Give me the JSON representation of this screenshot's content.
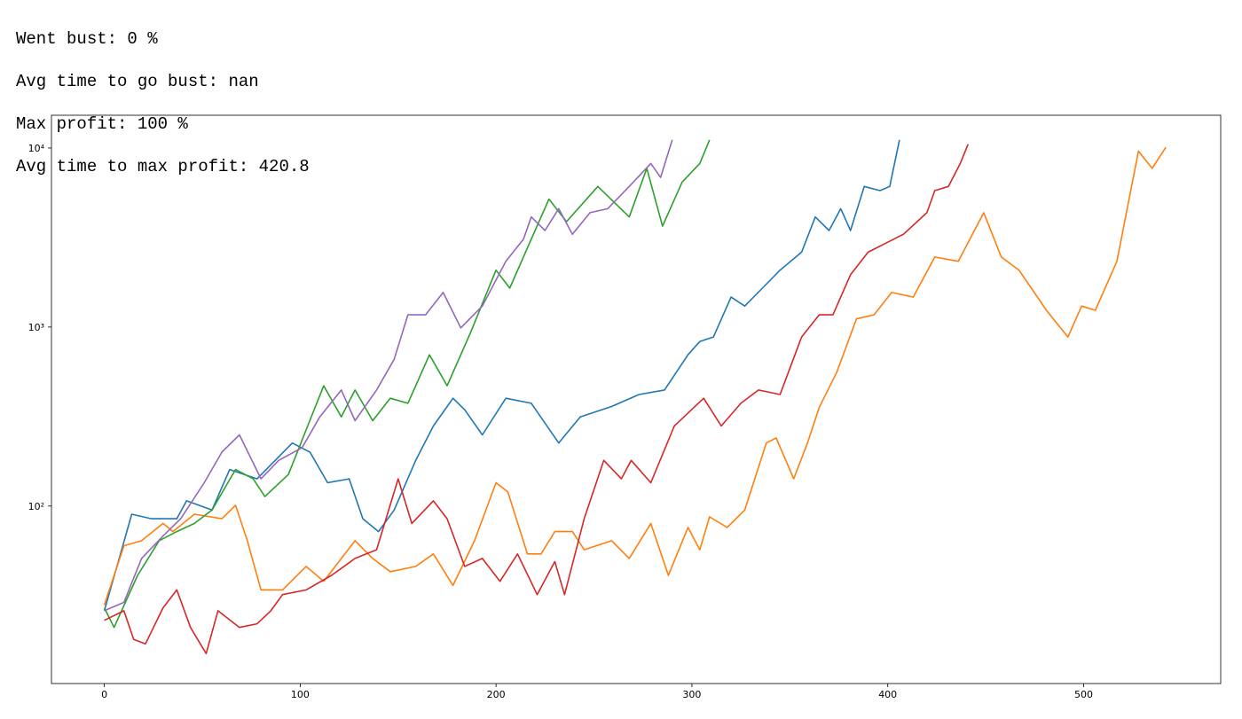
{
  "output_lines": [
    "Went bust: 0 %",
    "Avg time to go bust: nan",
    "Max profit: 100 %",
    "Avg time to max profit: 420.8"
  ],
  "chart_data": {
    "type": "line",
    "log_y": true,
    "grid": false,
    "xlim": [
      -27,
      570
    ],
    "ylim": [
      10.2,
      15240
    ],
    "xticks": [
      0,
      100,
      200,
      300,
      400,
      500
    ],
    "yticks": [
      {
        "value": 100,
        "label": "10²"
      },
      {
        "value": 1000,
        "label": "10³"
      },
      {
        "value": 10000,
        "label": "10⁴"
      }
    ],
    "series": [
      {
        "color": "#1f77b4",
        "x": [
          0,
          14,
          24,
          37,
          42,
          55,
          64,
          78,
          96,
          105,
          114,
          125,
          132,
          140,
          148,
          159,
          168,
          178,
          184,
          193,
          205,
          218,
          232,
          243,
          259,
          273,
          286,
          298,
          304,
          311,
          320,
          327,
          336,
          345,
          356,
          363,
          370,
          376,
          381,
          388,
          396,
          401,
          406
        ],
        "values": [
          26,
          90,
          85,
          85,
          107,
          95,
          160,
          142,
          225,
          200,
          135,
          142,
          85,
          72,
          95,
          180,
          280,
          400,
          345,
          250,
          400,
          375,
          225,
          315,
          360,
          420,
          445,
          700,
          830,
          880,
          1470,
          1310,
          1650,
          2080,
          2620,
          4120,
          3460,
          4580,
          3460,
          6100,
          5780,
          6100,
          11100
        ]
      },
      {
        "color": "#ff7f0e",
        "x": [
          0,
          10,
          19,
          30,
          35,
          46,
          60,
          67,
          73,
          80,
          91,
          103,
          112,
          128,
          137,
          146,
          159,
          168,
          178,
          189,
          200,
          206,
          216,
          223,
          230,
          239,
          245,
          259,
          268,
          279,
          288,
          298,
          304,
          309,
          318,
          327,
          338,
          343,
          352,
          359,
          365,
          374,
          384,
          393,
          402,
          413,
          424,
          436,
          449,
          458,
          467,
          481,
          492,
          499,
          506,
          517,
          528,
          535,
          542
        ],
        "values": [
          28,
          60,
          64,
          80,
          72,
          90,
          85,
          101,
          64,
          34,
          34,
          46,
          38,
          64,
          51,
          43,
          46,
          54,
          36,
          64,
          135,
          120,
          54,
          54,
          72,
          72,
          57,
          64,
          51,
          80,
          41,
          76,
          57,
          87,
          76,
          95,
          225,
          240,
          142,
          225,
          355,
          560,
          1110,
          1170,
          1560,
          1470,
          2460,
          2330,
          4350,
          2460,
          2080,
          1240,
          880,
          1310,
          1240,
          2330,
          9600,
          7700,
          10100
        ]
      },
      {
        "color": "#2ca02c",
        "x": [
          0,
          5,
          17,
          28,
          37,
          46,
          55,
          67,
          76,
          82,
          94,
          103,
          112,
          121,
          128,
          137,
          146,
          155,
          166,
          175,
          187,
          200,
          207,
          218,
          227,
          236,
          252,
          268,
          277,
          285,
          295,
          304,
          309
        ],
        "values": [
          27,
          21,
          41,
          64,
          72,
          80,
          95,
          160,
          142,
          113,
          150,
          266,
          470,
          315,
          445,
          300,
          400,
          375,
          700,
          470,
          930,
          2080,
          1650,
          3100,
          5180,
          3880,
          6100,
          4120,
          7700,
          3660,
          6450,
          8200,
          11100
        ]
      },
      {
        "color": "#d62728",
        "x": [
          0,
          10,
          15,
          21,
          30,
          37,
          44,
          52,
          58,
          69,
          78,
          85,
          91,
          103,
          116,
          128,
          139,
          150,
          157,
          168,
          175,
          184,
          193,
          202,
          211,
          221,
          230,
          235,
          245,
          255,
          264,
          269,
          279,
          291,
          306,
          315,
          325,
          334,
          345,
          356,
          365,
          372,
          381,
          390,
          399,
          408,
          420,
          424,
          431,
          437,
          441
        ],
        "values": [
          23,
          26,
          18,
          17,
          27,
          34,
          21,
          15,
          26,
          21,
          22,
          26,
          32,
          34,
          41,
          51,
          57,
          142,
          80,
          107,
          85,
          46,
          51,
          38,
          54,
          32,
          49,
          32,
          85,
          180,
          142,
          180,
          135,
          280,
          400,
          280,
          375,
          445,
          420,
          880,
          1170,
          1170,
          1960,
          2620,
          2940,
          3300,
          4350,
          5780,
          6100,
          8200,
          10500
        ]
      },
      {
        "color": "#9467bd",
        "x": [
          0,
          10,
          19,
          30,
          39,
          51,
          60,
          69,
          80,
          89,
          101,
          110,
          121,
          128,
          139,
          148,
          155,
          164,
          173,
          182,
          193,
          205,
          214,
          218,
          225,
          232,
          239,
          248,
          257,
          268,
          279,
          284,
          290
        ],
        "values": [
          26,
          29,
          51,
          68,
          85,
          135,
          200,
          250,
          142,
          180,
          212,
          315,
          445,
          300,
          445,
          660,
          1170,
          1170,
          1560,
          990,
          1310,
          2330,
          3100,
          4120,
          3460,
          4580,
          3300,
          4350,
          4580,
          6100,
          8200,
          6850,
          11100
        ]
      }
    ]
  }
}
